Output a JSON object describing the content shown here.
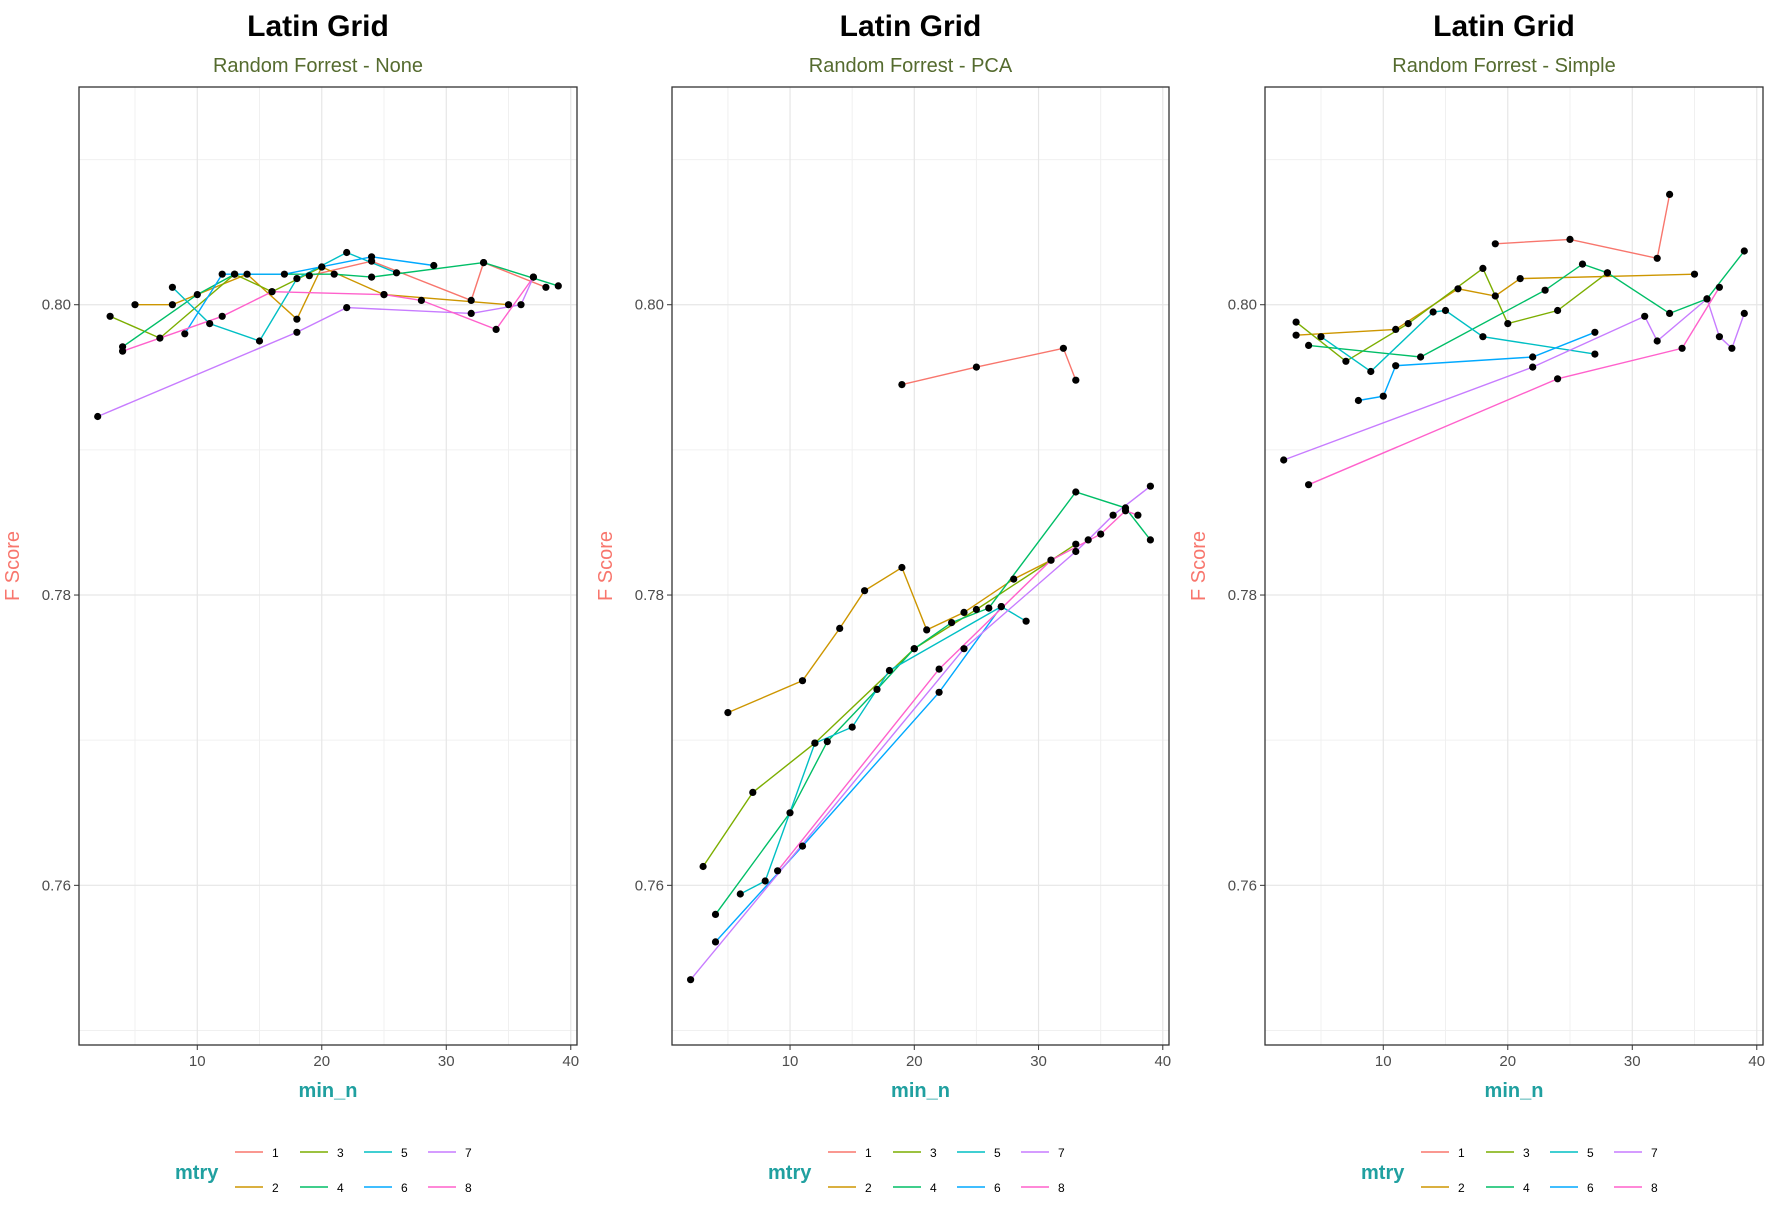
{
  "series_colors": {
    "1": "#F8766D",
    "2": "#CD9600",
    "3": "#7CAE00",
    "4": "#00BE67",
    "5": "#00BFC4",
    "6": "#00A9FF",
    "7": "#C77CFF",
    "8": "#FF61CC"
  },
  "point_color": "#000000",
  "chart_data": [
    {
      "type": "line",
      "title": "Latin Grid",
      "subtitle": "Random Forrest - None",
      "xlabel": "min_n",
      "ylabel": "F Score",
      "xlim": [
        0.5,
        40.5
      ],
      "ylim": [
        0.749,
        0.815
      ],
      "xticks": [
        10,
        20,
        30,
        40
      ],
      "xtick_labels": [
        "10",
        "20",
        "30",
        "40"
      ],
      "yticks": [
        0.76,
        0.78,
        0.8
      ],
      "ytick_labels": [
        "0.76",
        "0.78",
        "0.80"
      ],
      "grid": true,
      "legend": {
        "title": "mtry",
        "position": "bottom",
        "labels": [
          "1",
          "2",
          "3",
          "4",
          "5",
          "6",
          "7",
          "8"
        ]
      },
      "series": [
        {
          "name": "1",
          "x": [
            19,
            24,
            32,
            33,
            38
          ],
          "y": [
            0.802,
            0.803,
            0.8003,
            0.8029,
            0.8012
          ]
        },
        {
          "name": "2",
          "x": [
            5,
            8,
            14,
            18,
            20,
            25,
            35
          ],
          "y": [
            0.8,
            0.8,
            0.8021,
            0.799,
            0.8026,
            0.8007,
            0.8
          ]
        },
        {
          "name": "3",
          "x": [
            3,
            7,
            13,
            16,
            20
          ],
          "y": [
            0.7992,
            0.7977,
            0.8021,
            0.8009,
            0.8026
          ]
        },
        {
          "name": "4",
          "x": [
            4,
            10,
            13,
            21,
            24,
            33,
            39
          ],
          "y": [
            0.7971,
            0.8007,
            0.8021,
            0.8021,
            0.8019,
            0.8029,
            0.8013
          ]
        },
        {
          "name": "5",
          "x": [
            8,
            11,
            15,
            18,
            22,
            26
          ],
          "y": [
            0.8012,
            0.7987,
            0.7975,
            0.8018,
            0.8036,
            0.8022
          ]
        },
        {
          "name": "6",
          "x": [
            9,
            12,
            17,
            24,
            29
          ],
          "y": [
            0.798,
            0.8021,
            0.8021,
            0.8033,
            0.8027
          ]
        },
        {
          "name": "7",
          "x": [
            2,
            18,
            22,
            32,
            36,
            37
          ],
          "y": [
            0.7923,
            0.7981,
            0.7998,
            0.7994,
            0.8,
            0.8019
          ]
        },
        {
          "name": "8",
          "x": [
            4,
            12,
            16,
            25,
            28,
            34,
            37
          ],
          "y": [
            0.7968,
            0.7992,
            0.8009,
            0.8007,
            0.8003,
            0.7983,
            0.8019
          ]
        }
      ]
    },
    {
      "type": "line",
      "title": "Latin Grid",
      "subtitle": "Random Forrest - PCA",
      "xlabel": "min_n",
      "ylabel": "F Score",
      "xlim": [
        0.5,
        40.5
      ],
      "ylim": [
        0.749,
        0.815
      ],
      "xticks": [
        10,
        20,
        30,
        40
      ],
      "xtick_labels": [
        "10",
        "20",
        "30",
        "40"
      ],
      "yticks": [
        0.76,
        0.78,
        0.8
      ],
      "ytick_labels": [
        "0.76",
        "0.78",
        "0.80"
      ],
      "grid": true,
      "legend": {
        "title": "mtry",
        "position": "bottom",
        "labels": [
          "1",
          "2",
          "3",
          "4",
          "5",
          "6",
          "7",
          "8"
        ]
      },
      "series": [
        {
          "name": "1",
          "x": [
            19,
            25,
            32,
            33
          ],
          "y": [
            0.7945,
            0.7957,
            0.797,
            0.7948
          ]
        },
        {
          "name": "2",
          "x": [
            5,
            11,
            14,
            16,
            19,
            21,
            24,
            28,
            31
          ],
          "y": [
            0.7719,
            0.7741,
            0.7777,
            0.7803,
            0.7819,
            0.7776,
            0.7788,
            0.7811,
            0.7824
          ]
        },
        {
          "name": "3",
          "x": [
            3,
            7,
            12,
            20,
            25,
            33
          ],
          "y": [
            0.7613,
            0.7664,
            0.7698,
            0.7763,
            0.779,
            0.7835
          ]
        },
        {
          "name": "4",
          "x": [
            4,
            10,
            13,
            17,
            20,
            23,
            26,
            33,
            37,
            39
          ],
          "y": [
            0.758,
            0.765,
            0.7699,
            0.7735,
            0.7763,
            0.7781,
            0.7791,
            0.7871,
            0.786,
            0.7838
          ]
        },
        {
          "name": "5",
          "x": [
            6,
            8,
            12,
            15,
            18,
            27,
            29
          ],
          "y": [
            0.7594,
            0.7603,
            0.7698,
            0.7709,
            0.7748,
            0.7792,
            0.7782
          ]
        },
        {
          "name": "6",
          "x": [
            4,
            11,
            22,
            27
          ],
          "y": [
            0.7561,
            0.7627,
            0.7733,
            0.7792
          ]
        },
        {
          "name": "7",
          "x": [
            2,
            24,
            33,
            34,
            36,
            39
          ],
          "y": [
            0.7535,
            0.7763,
            0.783,
            0.7838,
            0.7855,
            0.7875
          ]
        },
        {
          "name": "8",
          "x": [
            9,
            22,
            31,
            35,
            37,
            38
          ],
          "y": [
            0.761,
            0.7749,
            0.7824,
            0.7842,
            0.7858,
            0.7855
          ]
        }
      ]
    },
    {
      "type": "line",
      "title": "Latin Grid",
      "subtitle": "Random Forrest - Simple",
      "xlabel": "min_n",
      "ylabel": "F Score",
      "xlim": [
        0.5,
        40.5
      ],
      "ylim": [
        0.749,
        0.815
      ],
      "xticks": [
        10,
        20,
        30,
        40
      ],
      "xtick_labels": [
        "10",
        "20",
        "30",
        "40"
      ],
      "yticks": [
        0.76,
        0.78,
        0.8
      ],
      "ytick_labels": [
        "0.76",
        "0.78",
        "0.80"
      ],
      "grid": true,
      "legend": {
        "title": "mtry",
        "position": "bottom",
        "labels": [
          "1",
          "2",
          "3",
          "4",
          "5",
          "6",
          "7",
          "8"
        ]
      },
      "series": [
        {
          "name": "1",
          "x": [
            19,
            25,
            32,
            33
          ],
          "y": [
            0.8042,
            0.8045,
            0.8032,
            0.8076
          ]
        },
        {
          "name": "2",
          "x": [
            3,
            11,
            16,
            19,
            21,
            35
          ],
          "y": [
            0.7979,
            0.7983,
            0.8011,
            0.8006,
            0.8018,
            0.8021
          ]
        },
        {
          "name": "3",
          "x": [
            3,
            7,
            12,
            18,
            20,
            24,
            28
          ],
          "y": [
            0.7988,
            0.7961,
            0.7987,
            0.8025,
            0.7987,
            0.7996,
            0.8022
          ]
        },
        {
          "name": "4",
          "x": [
            4,
            13,
            23,
            26,
            28,
            33,
            36,
            39
          ],
          "y": [
            0.7972,
            0.7964,
            0.801,
            0.8028,
            0.8022,
            0.7994,
            0.8004,
            0.8037
          ]
        },
        {
          "name": "5",
          "x": [
            5,
            9,
            14,
            15,
            18,
            27
          ],
          "y": [
            0.7978,
            0.7954,
            0.7995,
            0.7996,
            0.7978,
            0.7966
          ]
        },
        {
          "name": "6",
          "x": [
            8,
            10,
            11,
            22,
            27
          ],
          "y": [
            0.7934,
            0.7937,
            0.7958,
            0.7964,
            0.7981
          ]
        },
        {
          "name": "7",
          "x": [
            2,
            22,
            31,
            32,
            36,
            37,
            38,
            39
          ],
          "y": [
            0.7893,
            0.7957,
            0.7992,
            0.7975,
            0.8004,
            0.7978,
            0.797,
            0.7994
          ]
        },
        {
          "name": "8",
          "x": [
            4,
            24,
            34,
            37
          ],
          "y": [
            0.7876,
            0.7949,
            0.797,
            0.8012
          ]
        }
      ]
    }
  ]
}
